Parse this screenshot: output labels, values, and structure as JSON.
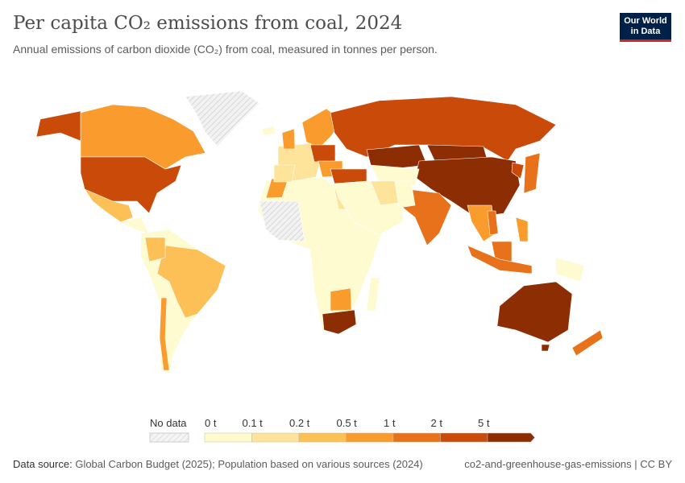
{
  "header": {
    "title": "Per capita CO₂ emissions from coal, 2024",
    "subtitle": "Annual emissions of carbon dioxide (CO₂) from coal, measured in tonnes per person.",
    "logo": "Our World in Data"
  },
  "legend": {
    "no_data_label": "No data",
    "no_data_color": "#e0e0e0",
    "ticks": [
      "0 t",
      "0.1 t",
      "0.2 t",
      "0.5 t",
      "1 t",
      "2 t",
      "5 t"
    ],
    "colors": [
      "#fefbd0",
      "#fde49a",
      "#fdc057",
      "#f99b2d",
      "#e8711b",
      "#c94a09",
      "#8c2d04"
    ]
  },
  "footer": {
    "source_label": "Data source:",
    "source": "Global Carbon Budget (2025); Population based on various sources (2024)",
    "slug": "co2-and-greenhouse-gas-emissions | CC BY"
  }
}
